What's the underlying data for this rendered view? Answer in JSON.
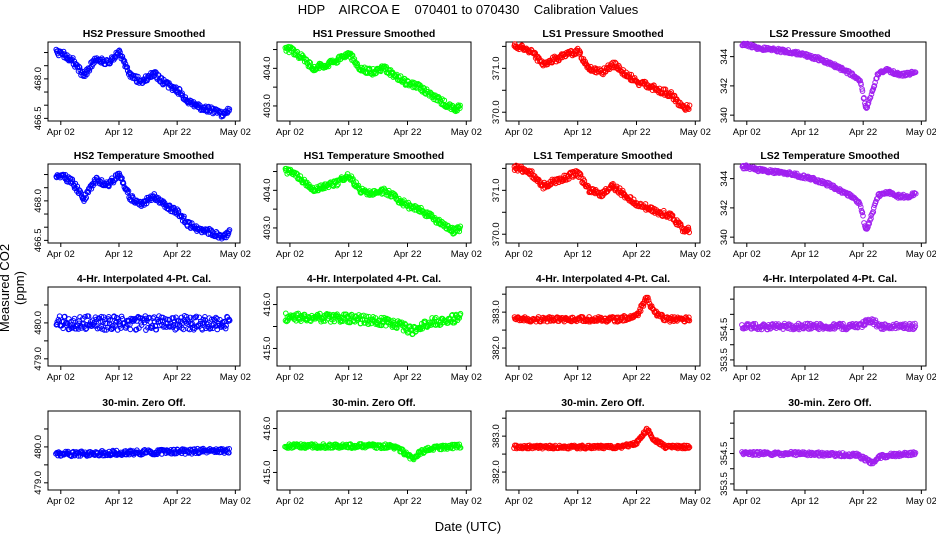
{
  "page": {
    "title": "HDP    AIRCOA E    070401 to 070430    Calibration Values",
    "ylabel": "Measured CO2 (ppm)",
    "xlabel": "Date (UTC)"
  },
  "colors": {
    "HS2": "#0000ff",
    "HS1": "#00ff00",
    "LS1": "#ff0000",
    "LS2": "#a020f0"
  },
  "chart_data": [
    {
      "type": "scatter",
      "id": "hs2-pressure",
      "title": "HS2 Pressure Smoothed",
      "series": "HS2",
      "xticks": [
        "Apr 02",
        "Apr 12",
        "Apr 22",
        "May 02"
      ],
      "ylim": [
        466.4,
        469.4
      ],
      "yticks": [
        "466.5",
        "467.0",
        "467.5",
        "468.0",
        "468.5",
        "469.0"
      ],
      "yticks_labeled": [
        "466.5",
        "468.0"
      ],
      "trend_x": [
        1,
        3,
        5,
        7,
        9,
        11,
        13,
        15,
        17,
        19,
        21,
        23,
        25,
        27,
        29,
        30
      ],
      "trend_y": [
        469.0,
        468.7,
        468.1,
        468.8,
        468.6,
        469.0,
        468.1,
        467.9,
        468.2,
        467.8,
        467.6,
        467.1,
        466.9,
        466.8,
        466.6,
        466.9
      ],
      "noise": 0.12
    },
    {
      "type": "scatter",
      "id": "hs1-pressure",
      "title": "HS1 Pressure Smoothed",
      "series": "HS1",
      "xticks": [
        "Apr 02",
        "Apr 12",
        "Apr 22",
        "May 02"
      ],
      "ylim": [
        402.6,
        404.7
      ],
      "yticks": [
        "403.0",
        "403.5",
        "404.0",
        "404.5"
      ],
      "yticks_labeled": [
        "403.0",
        "404.0"
      ],
      "trend_x": [
        1,
        3,
        5,
        7,
        9,
        11,
        13,
        15,
        17,
        19,
        21,
        23,
        25,
        27,
        29,
        30
      ],
      "trend_y": [
        404.5,
        404.3,
        404.0,
        404.1,
        404.2,
        404.4,
        404.0,
        403.9,
        404.0,
        403.8,
        403.6,
        403.5,
        403.3,
        403.1,
        402.9,
        403.0
      ],
      "noise": 0.08
    },
    {
      "type": "scatter",
      "id": "ls1-pressure",
      "title": "LS1 Pressure Smoothed",
      "series": "LS1",
      "xticks": [
        "Apr 02",
        "Apr 12",
        "Apr 22",
        "May 02"
      ],
      "ylim": [
        369.8,
        371.6
      ],
      "yticks": [
        "370.0",
        "370.5",
        "371.0",
        "371.5"
      ],
      "yticks_labeled": [
        "370.0",
        "371.0"
      ],
      "trend_x": [
        1,
        3,
        5,
        7,
        9,
        11,
        13,
        15,
        17,
        19,
        21,
        23,
        25,
        27,
        29,
        30
      ],
      "trend_y": [
        371.5,
        371.4,
        371.1,
        371.2,
        371.3,
        371.4,
        371.0,
        370.9,
        371.1,
        370.9,
        370.7,
        370.6,
        370.5,
        370.4,
        370.1,
        370.1
      ],
      "noise": 0.07
    },
    {
      "type": "scatter",
      "id": "ls2-pressure",
      "title": "LS2 Pressure Smoothed",
      "series": "LS2",
      "xticks": [
        "Apr 02",
        "Apr 12",
        "Apr 22",
        "May 02"
      ],
      "ylim": [
        339.6,
        345.0
      ],
      "yticks": [
        "340",
        "342",
        "344"
      ],
      "yticks_labeled": [
        "340",
        "342",
        "344"
      ],
      "trend_x": [
        1,
        3,
        5,
        7,
        9,
        11,
        13,
        15,
        17,
        19,
        20.5,
        21.5,
        22.5,
        23.5,
        25,
        27,
        29,
        30
      ],
      "trend_y": [
        344.8,
        344.6,
        344.5,
        344.4,
        344.3,
        344.1,
        343.9,
        343.6,
        343.2,
        342.8,
        342.3,
        340.4,
        341.5,
        342.8,
        343.1,
        342.8,
        342.8,
        343.0
      ],
      "noise": 0.12
    },
    {
      "type": "scatter",
      "id": "hs2-temperature",
      "title": "HS2 Temperature Smoothed",
      "series": "HS2",
      "xticks": [
        "Apr 02",
        "Apr 12",
        "Apr 22",
        "May 02"
      ],
      "ylim": [
        466.4,
        469.4
      ],
      "yticks": [
        "466.5",
        "467.0",
        "467.5",
        "468.0",
        "468.5",
        "469.0"
      ],
      "yticks_labeled": [
        "466.5",
        "468.0"
      ],
      "trend_x": [
        1,
        3,
        5,
        7,
        9,
        11,
        13,
        15,
        17,
        19,
        21,
        23,
        25,
        27,
        29,
        30
      ],
      "trend_y": [
        469.0,
        468.7,
        468.1,
        468.8,
        468.6,
        469.0,
        468.1,
        467.9,
        468.2,
        467.8,
        467.6,
        467.1,
        466.9,
        466.8,
        466.6,
        466.9
      ],
      "noise": 0.12
    },
    {
      "type": "scatter",
      "id": "hs1-temperature",
      "title": "HS1 Temperature Smoothed",
      "series": "HS1",
      "xticks": [
        "Apr 02",
        "Apr 12",
        "Apr 22",
        "May 02"
      ],
      "ylim": [
        402.6,
        404.7
      ],
      "yticks": [
        "403.0",
        "403.5",
        "404.0",
        "404.5"
      ],
      "yticks_labeled": [
        "403.0",
        "404.0"
      ],
      "trend_x": [
        1,
        3,
        5,
        7,
        9,
        11,
        13,
        15,
        17,
        19,
        21,
        23,
        25,
        27,
        29,
        30
      ],
      "trend_y": [
        404.5,
        404.3,
        404.0,
        404.1,
        404.2,
        404.4,
        404.0,
        403.9,
        404.0,
        403.8,
        403.6,
        403.5,
        403.3,
        403.1,
        402.9,
        403.0
      ],
      "noise": 0.08
    },
    {
      "type": "scatter",
      "id": "ls1-temperature",
      "title": "LS1 Temperature Smoothed",
      "series": "LS1",
      "xticks": [
        "Apr 02",
        "Apr 12",
        "Apr 22",
        "May 02"
      ],
      "ylim": [
        369.8,
        371.6
      ],
      "yticks": [
        "370.0",
        "370.5",
        "371.0",
        "371.5"
      ],
      "yticks_labeled": [
        "370.0",
        "371.0"
      ],
      "trend_x": [
        1,
        3,
        5,
        7,
        9,
        11,
        13,
        15,
        17,
        19,
        21,
        23,
        25,
        27,
        29,
        30
      ],
      "trend_y": [
        371.5,
        371.4,
        371.1,
        371.2,
        371.3,
        371.4,
        371.0,
        370.9,
        371.1,
        370.9,
        370.7,
        370.6,
        370.5,
        370.4,
        370.1,
        370.1
      ],
      "noise": 0.07
    },
    {
      "type": "scatter",
      "id": "ls2-temperature",
      "title": "LS2 Temperature Smoothed",
      "series": "LS2",
      "xticks": [
        "Apr 02",
        "Apr 12",
        "Apr 22",
        "May 02"
      ],
      "ylim": [
        339.6,
        345.0
      ],
      "yticks": [
        "340",
        "342",
        "344"
      ],
      "yticks_labeled": [
        "340",
        "342",
        "344"
      ],
      "trend_x": [
        1,
        3,
        5,
        7,
        9,
        11,
        13,
        15,
        17,
        19,
        20.5,
        21.5,
        22.5,
        23.5,
        25,
        27,
        29,
        30
      ],
      "trend_y": [
        344.8,
        344.6,
        344.5,
        344.4,
        344.3,
        344.1,
        343.9,
        343.6,
        343.2,
        342.8,
        342.3,
        340.4,
        341.5,
        342.8,
        343.1,
        342.8,
        342.8,
        343.0
      ],
      "noise": 0.12
    },
    {
      "type": "scatter",
      "id": "hs2-4pt",
      "title": "4-Hr. Interpolated 4-Pt. Cal.",
      "series": "HS2",
      "xticks": [
        "Apr 02",
        "Apr 12",
        "Apr 22",
        "May 02"
      ],
      "ylim": [
        478.8,
        481.0
      ],
      "yticks": [
        "479.0",
        "479.5",
        "480.0",
        "480.5"
      ],
      "yticks_labeled": [
        "479.0",
        "480.0"
      ],
      "trend_x": [
        1,
        15,
        30
      ],
      "trend_y": [
        480.0,
        480.0,
        480.0
      ],
      "noise": 0.2
    },
    {
      "type": "scatter",
      "id": "hs1-4pt",
      "title": "4-Hr. Interpolated 4-Pt. Cal.",
      "series": "HS1",
      "xticks": [
        "Apr 02",
        "Apr 12",
        "Apr 22",
        "May 02"
      ],
      "ylim": [
        414.6,
        416.4
      ],
      "yticks": [
        "415.0",
        "415.5",
        "416.0"
      ],
      "yticks_labeled": [
        "415.0",
        "416.0"
      ],
      "trend_x": [
        1,
        10,
        18,
        20,
        22,
        23,
        25,
        30
      ],
      "trend_y": [
        415.7,
        415.7,
        415.6,
        415.5,
        415.4,
        415.5,
        415.6,
        415.7
      ],
      "noise": 0.1
    },
    {
      "type": "scatter",
      "id": "ls1-4pt",
      "title": "4-Hr. Interpolated 4-Pt. Cal.",
      "series": "LS1",
      "xticks": [
        "Apr 02",
        "Apr 12",
        "Apr 22",
        "May 02"
      ],
      "ylim": [
        381.5,
        383.7
      ],
      "yticks": [
        "382.0",
        "382.5",
        "383.0",
        "383.5"
      ],
      "yticks_labeled": [
        "382.0",
        "383.0"
      ],
      "trend_x": [
        1,
        10,
        18,
        21,
        22.8,
        24,
        26,
        30
      ],
      "trend_y": [
        382.8,
        382.8,
        382.8,
        382.9,
        383.4,
        383.0,
        382.8,
        382.8
      ],
      "noise": 0.07
    },
    {
      "type": "scatter",
      "id": "ls2-4pt",
      "title": "4-Hr. Interpolated 4-Pt. Cal.",
      "series": "LS2",
      "xticks": [
        "Apr 02",
        "Apr 12",
        "Apr 22",
        "May 02"
      ],
      "ylim": [
        353.3,
        355.9
      ],
      "yticks": [
        "353.5",
        "354.0",
        "354.5",
        "355.0",
        "355.5"
      ],
      "yticks_labeled": [
        "353.5",
        "354.5"
      ],
      "trend_x": [
        1,
        10,
        20,
        22.5,
        24,
        26,
        30
      ],
      "trend_y": [
        354.6,
        354.6,
        354.6,
        354.8,
        354.6,
        354.6,
        354.6
      ],
      "noise": 0.1
    },
    {
      "type": "scatter",
      "id": "hs2-zero",
      "title": "30-min. Zero Off.",
      "series": "HS2",
      "xticks": [
        "Apr 02",
        "Apr 12",
        "Apr 22",
        "May 02"
      ],
      "ylim": [
        478.8,
        481.0
      ],
      "yticks": [
        "479.0",
        "479.5",
        "480.0",
        "480.5"
      ],
      "yticks_labeled": [
        "479.0",
        "480.0"
      ],
      "trend_x": [
        1,
        15,
        30
      ],
      "trend_y": [
        479.8,
        479.85,
        479.9
      ],
      "noise": 0.07
    },
    {
      "type": "scatter",
      "id": "hs1-zero",
      "title": "30-min. Zero Off.",
      "series": "HS1",
      "xticks": [
        "Apr 02",
        "Apr 12",
        "Apr 22",
        "May 02"
      ],
      "ylim": [
        414.6,
        416.4
      ],
      "yticks": [
        "415.0",
        "415.5",
        "416.0"
      ],
      "yticks_labeled": [
        "415.0",
        "416.0"
      ],
      "trend_x": [
        1,
        18,
        20,
        22,
        23,
        25,
        30
      ],
      "trend_y": [
        415.6,
        415.6,
        415.5,
        415.3,
        415.45,
        415.55,
        415.6
      ],
      "noise": 0.05
    },
    {
      "type": "scatter",
      "id": "ls1-zero",
      "title": "30-min. Zero Off.",
      "series": "LS1",
      "xticks": [
        "Apr 02",
        "Apr 12",
        "Apr 22",
        "May 02"
      ],
      "ylim": [
        381.5,
        383.7
      ],
      "yticks": [
        "382.0",
        "382.5",
        "383.0",
        "383.5"
      ],
      "yticks_labeled": [
        "382.0",
        "383.0"
      ],
      "trend_x": [
        1,
        10,
        18,
        21,
        22.8,
        24,
        26,
        30
      ],
      "trend_y": [
        382.7,
        382.7,
        382.7,
        382.8,
        383.2,
        382.9,
        382.7,
        382.7
      ],
      "noise": 0.05
    },
    {
      "type": "scatter",
      "id": "ls2-zero",
      "title": "30-min. Zero Off.",
      "series": "LS2",
      "xticks": [
        "Apr 02",
        "Apr 12",
        "Apr 22",
        "May 02"
      ],
      "ylim": [
        353.3,
        355.9
      ],
      "yticks": [
        "353.5",
        "354.0",
        "354.5",
        "355.0",
        "355.5"
      ],
      "yticks_labeled": [
        "353.5",
        "354.5"
      ],
      "trend_x": [
        1,
        10,
        20,
        22.5,
        24,
        26,
        30
      ],
      "trend_y": [
        354.5,
        354.5,
        354.45,
        354.2,
        354.4,
        354.45,
        354.5
      ],
      "noise": 0.06
    }
  ]
}
